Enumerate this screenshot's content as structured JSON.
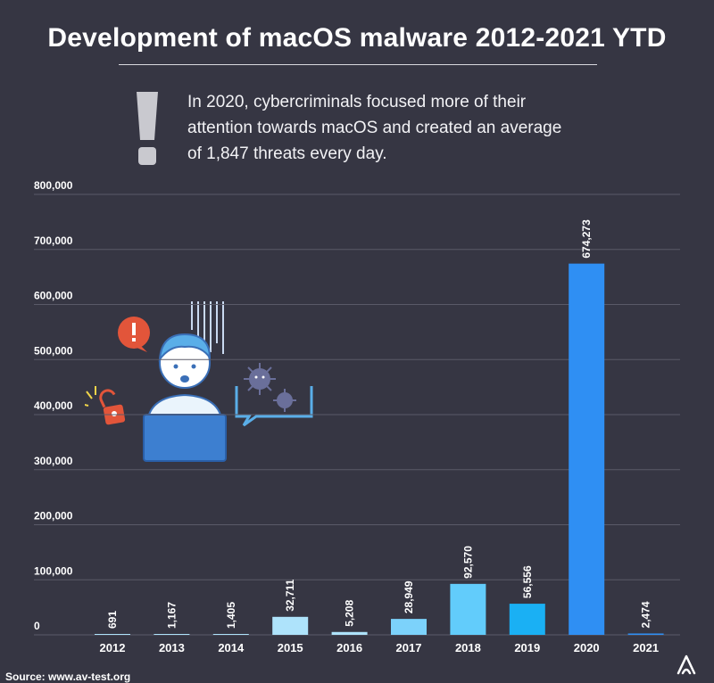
{
  "title": "Development of macOS malware 2012-2021 YTD",
  "callout": {
    "icon": "exclamation-icon",
    "text": "In 2020, cybercriminals focused more of their attention towards macOS and created an average of 1,847 threats every day."
  },
  "source": "Source: www.av-test.org",
  "brand_icon": "av-test-logo-icon",
  "illustration": {
    "description_icons": [
      "worried-user-at-laptop",
      "alert-bubble-icon",
      "unlocked-padlock-icon",
      "virus-speech-bubble-icon"
    ]
  },
  "chart_data": {
    "type": "bar",
    "title": "Development of macOS malware 2012-2021 YTD",
    "xlabel": "",
    "ylabel": "",
    "categories": [
      "2012",
      "2013",
      "2014",
      "2015",
      "2016",
      "2017",
      "2018",
      "2019",
      "2020",
      "2021"
    ],
    "values": [
      691,
      1167,
      1405,
      32711,
      5208,
      28949,
      92570,
      56556,
      674273,
      2474
    ],
    "value_labels": [
      "691",
      "1,167",
      "1,405",
      "32,711",
      "5,208",
      "28,949",
      "92,570",
      "56,556",
      "674,273",
      "2,474"
    ],
    "ylim": [
      0,
      800000
    ],
    "yticks": [
      0,
      100000,
      200000,
      300000,
      400000,
      500000,
      600000,
      700000,
      800000
    ],
    "ytick_labels": [
      "0",
      "100,000",
      "200,000",
      "300,000",
      "400,000",
      "500,000",
      "600,000",
      "700,000",
      "800,000"
    ],
    "grid": true,
    "bar_colors": [
      "#aee3fb",
      "#aee3fb",
      "#aee3fb",
      "#aee3fb",
      "#aee3fb",
      "#7cd2fb",
      "#62ccfb",
      "#1ab0f4",
      "#2f8ff3",
      "#2f8ff3"
    ],
    "grid_color": "#5a5a68"
  }
}
